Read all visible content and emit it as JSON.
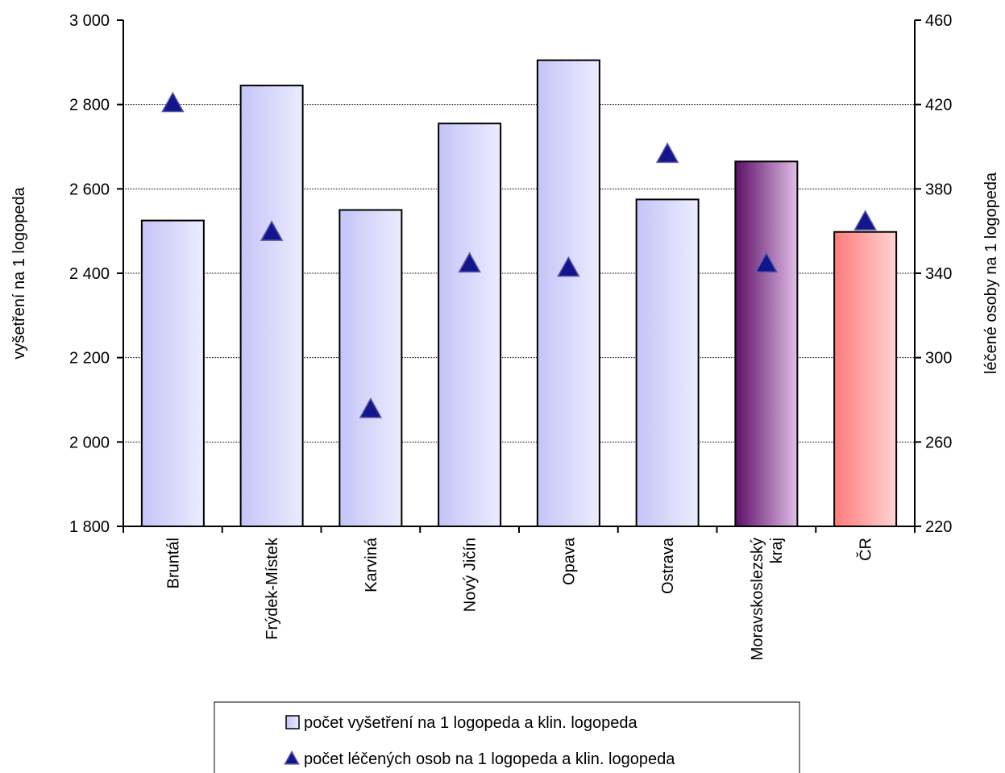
{
  "chart_data": {
    "type": "bar",
    "title": "",
    "categories": [
      "Bruntál",
      "Frýdek-Místek",
      "Karviná",
      "Nový Jičín",
      "Opava",
      "Ostrava",
      "Moravskoslezský kraj",
      "ČR"
    ],
    "category_lines": [
      [
        "Bruntál"
      ],
      [
        "Frýdek-Místek"
      ],
      [
        "Karviná"
      ],
      [
        "Nový Jičín"
      ],
      [
        "Opava"
      ],
      [
        "Ostrava"
      ],
      [
        "Moravskoslezský",
        "kraj"
      ],
      [
        "ČR"
      ]
    ],
    "series": [
      {
        "name": "počet vyšetření na 1 logopeda a klin. logopeda",
        "type": "bar",
        "axis": "left",
        "values": [
          2525,
          2845,
          2550,
          2755,
          2905,
          2575,
          2665,
          2498
        ]
      },
      {
        "name": "počet léčených osob na 1 logopeda a klin. logopeda",
        "type": "marker",
        "marker": "triangle",
        "axis": "right",
        "values": [
          420,
          359,
          275,
          344,
          342,
          396,
          344,
          364
        ]
      }
    ],
    "ylabel": "vyšetření na 1 logopeda",
    "ylim": [
      1800,
      3000
    ],
    "yticks": [
      1800,
      2000,
      2200,
      2400,
      2600,
      2800,
      3000
    ],
    "ytick_labels": [
      "1 800",
      "2 000",
      "2 200",
      "2 400",
      "2 600",
      "2 800",
      "3 000"
    ],
    "y2label": "léčené osoby na 1 logopeda",
    "y2lim": [
      220,
      460
    ],
    "y2ticks": [
      220,
      260,
      300,
      340,
      380,
      420,
      460
    ],
    "y2tick_labels": [
      "220",
      "260",
      "300",
      "340",
      "380",
      "420",
      "460"
    ],
    "grid": true,
    "legend_position": "bottom",
    "colors": {
      "bar_default_start": "#c4c4f7",
      "bar_default_end": "#ececff",
      "bar_region_start": "#5c0f66",
      "bar_region_end": "#e0bde6",
      "bar_country_start": "#ff7a7a",
      "bar_country_end": "#ffd3d3",
      "marker": "#14148c",
      "marker_stroke": "#5a5aa8",
      "bar_stroke": "#000000",
      "grid": "#000000"
    },
    "bar_fill_style": [
      "default",
      "default",
      "default",
      "default",
      "default",
      "default",
      "region",
      "country"
    ]
  }
}
